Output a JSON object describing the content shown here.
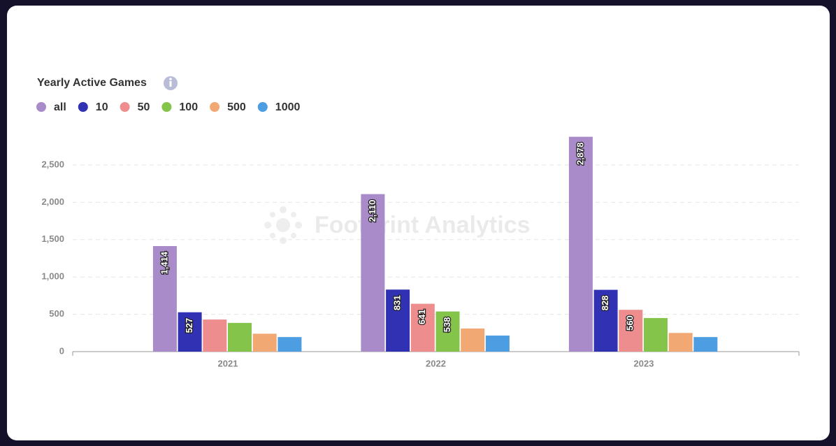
{
  "chart_data": {
    "type": "bar",
    "title": "Yearly Active Games",
    "watermark": "Footprint Analytics",
    "categories": [
      "2021",
      "2022",
      "2023"
    ],
    "series": [
      {
        "name": "all",
        "color": "#a98bc9",
        "values": [
          1414,
          2110,
          2878
        ],
        "value_labels": [
          "1,414",
          "2,110",
          "2,878"
        ]
      },
      {
        "name": "10",
        "color": "#3131b3",
        "values": [
          527,
          831,
          828
        ],
        "value_labels": [
          "527",
          "831",
          "828"
        ]
      },
      {
        "name": "50",
        "color": "#ee8d8d",
        "values": [
          430,
          641,
          560
        ],
        "value_labels": [
          null,
          "641",
          "560"
        ]
      },
      {
        "name": "100",
        "color": "#85c44b",
        "values": [
          385,
          538,
          450
        ],
        "value_labels": [
          null,
          "538",
          null
        ]
      },
      {
        "name": "500",
        "color": "#f2a872",
        "values": [
          240,
          310,
          250
        ],
        "value_labels": [
          null,
          null,
          null
        ]
      },
      {
        "name": "1000",
        "color": "#4c9de1",
        "values": [
          195,
          215,
          195
        ],
        "value_labels": [
          null,
          null,
          null
        ]
      }
    ],
    "ylim": [
      0,
      3000
    ],
    "yticks": [
      0,
      500,
      {
        "value": 1000,
        "label": "1,000"
      },
      {
        "value": 1500,
        "label": "1,500"
      },
      {
        "value": 2000,
        "label": "2,000"
      },
      {
        "value": 2500,
        "label": "2,500"
      }
    ],
    "grid": true
  }
}
